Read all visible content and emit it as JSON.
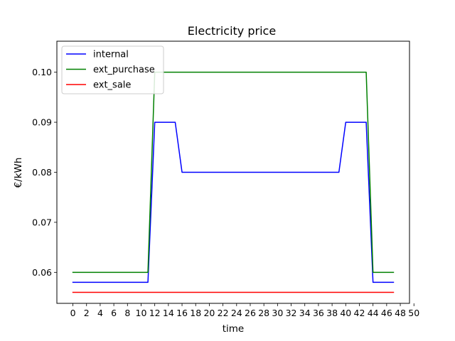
{
  "chart_data": {
    "type": "line",
    "title": "Electricity price",
    "xlabel": "time",
    "ylabel": "€/kWh",
    "xlim": [
      -2.35,
      49.35
    ],
    "ylim": [
      0.0538,
      0.1062
    ],
    "xticks": [
      0,
      2,
      4,
      6,
      8,
      10,
      12,
      14,
      16,
      18,
      20,
      22,
      24,
      26,
      28,
      30,
      32,
      34,
      36,
      38,
      40,
      42,
      44,
      46,
      48,
      50
    ],
    "yticks": [
      0.06,
      0.07,
      0.08,
      0.09,
      0.1
    ],
    "ytick_labels": [
      "0.06",
      "0.07",
      "0.08",
      "0.09",
      "0.10"
    ],
    "grid": false,
    "legend": "top-left",
    "series": [
      {
        "name": "internal",
        "color": "#0000ff",
        "x": [
          0,
          11,
          12,
          15,
          16,
          39,
          40,
          43,
          44,
          47
        ],
        "y": [
          0.058,
          0.058,
          0.09,
          0.09,
          0.08,
          0.08,
          0.09,
          0.09,
          0.058,
          0.058
        ]
      },
      {
        "name": "ext_purchase",
        "color": "#008000",
        "x": [
          0,
          11,
          12,
          43,
          44,
          47
        ],
        "y": [
          0.06,
          0.06,
          0.1,
          0.1,
          0.06,
          0.06
        ]
      },
      {
        "name": "ext_sale",
        "color": "#ff0000",
        "x": [
          0,
          47
        ],
        "y": [
          0.056,
          0.056
        ]
      }
    ]
  }
}
